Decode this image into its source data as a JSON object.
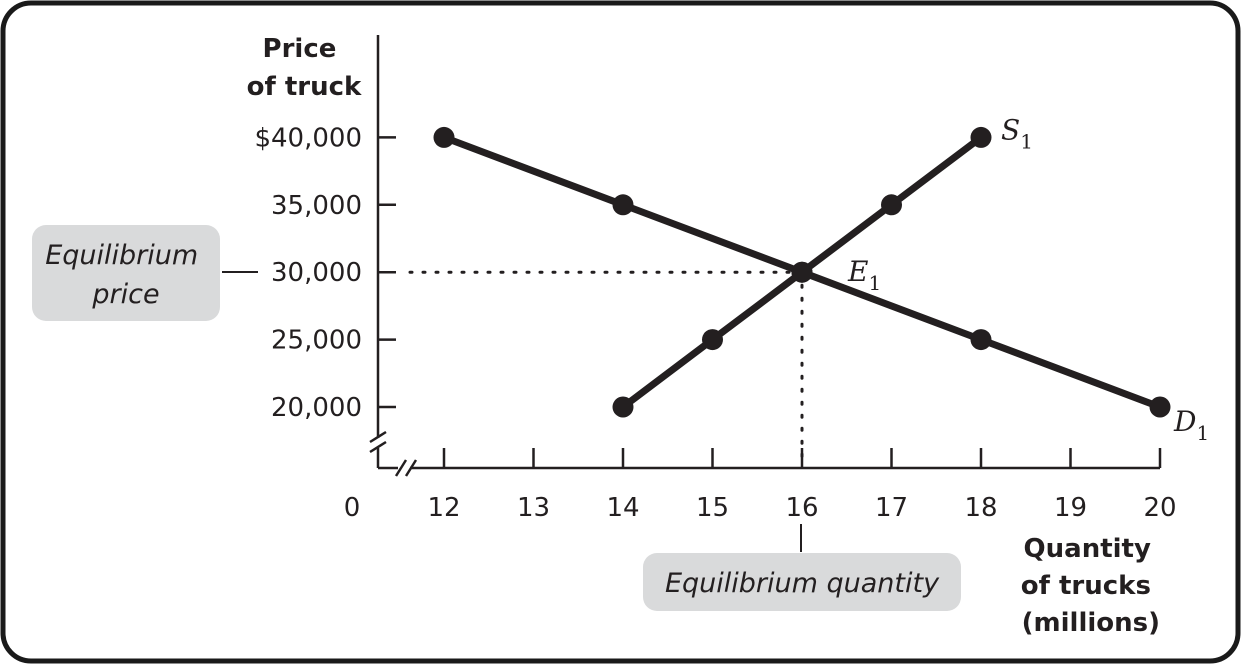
{
  "chart_data": {
    "type": "line",
    "title": "",
    "ylabel": [
      "Price",
      "of truck"
    ],
    "xlabel": [
      "Quantity",
      "of trucks",
      "(millions)"
    ],
    "xlim": [
      11,
      20
    ],
    "ylim": [
      18000,
      40000
    ],
    "axis_break": true,
    "origin_label": "0",
    "x_ticks": [
      12,
      13,
      14,
      15,
      16,
      17,
      18,
      19,
      20
    ],
    "x_tick_labels": [
      "12",
      "13",
      "14",
      "15",
      "16",
      "17",
      "18",
      "19",
      "20"
    ],
    "y_ticks": [
      20000,
      25000,
      30000,
      35000,
      40000
    ],
    "y_tick_labels": [
      "20,000",
      "25,000",
      "30,000",
      "35,000",
      "$40,000"
    ],
    "grid": false,
    "series": [
      {
        "name": "S",
        "subscript": "1",
        "points": [
          [
            14,
            20000
          ],
          [
            15,
            25000
          ],
          [
            16,
            30000
          ],
          [
            17,
            35000
          ],
          [
            18,
            40000
          ]
        ]
      },
      {
        "name": "D",
        "subscript": "1",
        "points": [
          [
            12,
            40000
          ],
          [
            14,
            35000
          ],
          [
            16,
            30000
          ],
          [
            18,
            25000
          ],
          [
            20,
            20000
          ]
        ]
      }
    ],
    "equilibrium": {
      "name": "E",
      "subscript": "1",
      "x": 16,
      "y": 30000
    },
    "annotations": {
      "price": [
        "Equilibrium",
        "price"
      ],
      "quantity": "Equilibrium quantity"
    }
  }
}
